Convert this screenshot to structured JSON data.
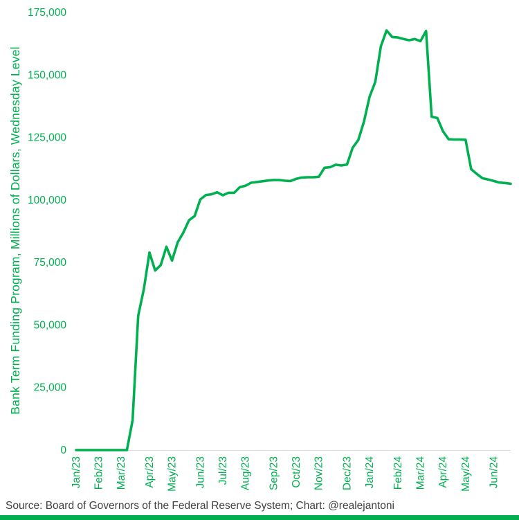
{
  "footer": {
    "source": "Source: Board of Governors of the Federal Reserve System; Chart: @realejantoni",
    "accent_color": "#00B050"
  },
  "chart_data": {
    "type": "line",
    "title": "",
    "xlabel": "",
    "ylabel": "Bank Term Funding Program, Millions of Dollars, Wednesday Level",
    "ylim": [
      0,
      175000
    ],
    "y_ticks": [
      0,
      25000,
      50000,
      75000,
      100000,
      125000,
      150000,
      175000
    ],
    "grid": "off",
    "legend": "none",
    "line_color": "#00B050",
    "axis_text_color": "#00B050",
    "x_tick_labels": [
      {
        "label": "Jan/23",
        "index": 0
      },
      {
        "label": "Feb/23",
        "index": 4
      },
      {
        "label": "Mar/23",
        "index": 8
      },
      {
        "label": "Apr/23",
        "index": 13
      },
      {
        "label": "May/23",
        "index": 17
      },
      {
        "label": "Jun/23",
        "index": 22
      },
      {
        "label": "Jul/23",
        "index": 26
      },
      {
        "label": "Aug/23",
        "index": 30
      },
      {
        "label": "Sep/23",
        "index": 35
      },
      {
        "label": "Oct/23",
        "index": 39
      },
      {
        "label": "Nov/23",
        "index": 43
      },
      {
        "label": "Dec/23",
        "index": 48
      },
      {
        "label": "Jan/24",
        "index": 52
      },
      {
        "label": "Feb/24",
        "index": 57
      },
      {
        "label": "Mar/24",
        "index": 61
      },
      {
        "label": "Apr/24",
        "index": 65
      },
      {
        "label": "May/24",
        "index": 69
      },
      {
        "label": "Jun/24",
        "index": 74
      }
    ],
    "x": [
      "2023-01-04",
      "2023-01-11",
      "2023-01-18",
      "2023-01-25",
      "2023-02-01",
      "2023-02-08",
      "2023-02-15",
      "2023-02-22",
      "2023-03-01",
      "2023-03-08",
      "2023-03-15",
      "2023-03-22",
      "2023-03-29",
      "2023-04-05",
      "2023-04-12",
      "2023-04-19",
      "2023-04-26",
      "2023-05-03",
      "2023-05-10",
      "2023-05-17",
      "2023-05-24",
      "2023-05-31",
      "2023-06-07",
      "2023-06-14",
      "2023-06-21",
      "2023-06-28",
      "2023-07-05",
      "2023-07-12",
      "2023-07-19",
      "2023-07-26",
      "2023-08-02",
      "2023-08-09",
      "2023-08-16",
      "2023-08-23",
      "2023-08-30",
      "2023-09-06",
      "2023-09-13",
      "2023-09-20",
      "2023-09-27",
      "2023-10-04",
      "2023-10-11",
      "2023-10-18",
      "2023-10-25",
      "2023-11-01",
      "2023-11-08",
      "2023-11-15",
      "2023-11-22",
      "2023-11-29",
      "2023-12-06",
      "2023-12-13",
      "2023-12-20",
      "2023-12-27",
      "2024-01-03",
      "2024-01-10",
      "2024-01-17",
      "2024-01-24",
      "2024-01-31",
      "2024-02-07",
      "2024-02-14",
      "2024-02-21",
      "2024-02-28",
      "2024-03-06",
      "2024-03-13",
      "2024-03-20",
      "2024-03-27",
      "2024-04-03",
      "2024-04-10",
      "2024-04-17",
      "2024-04-24",
      "2024-05-01",
      "2024-05-08",
      "2024-05-15",
      "2024-05-22",
      "2024-05-29",
      "2024-06-05",
      "2024-06-12",
      "2024-06-19",
      "2024-06-26"
    ],
    "values": [
      0,
      0,
      0,
      0,
      0,
      0,
      0,
      0,
      0,
      0,
      11900,
      53700,
      64400,
      79000,
      71800,
      74000,
      81300,
      75800,
      83100,
      87000,
      91900,
      93600,
      100200,
      102000,
      102300,
      103100,
      101900,
      102900,
      102900,
      105100,
      105700,
      106900,
      107200,
      107500,
      107800,
      108000,
      108000,
      107700,
      107600,
      108500,
      109000,
      109100,
      109100,
      109300,
      112900,
      113100,
      114100,
      113800,
      114200,
      120900,
      124000,
      131300,
      141300,
      147200,
      161500,
      167800,
      165200,
      165000,
      164400,
      163900,
      164400,
      163500,
      167600,
      133300,
      132800,
      127500,
      124300,
      124200,
      124200,
      124100,
      112300,
      110400,
      108700,
      108200,
      107600,
      107000,
      106800,
      106500
    ]
  }
}
